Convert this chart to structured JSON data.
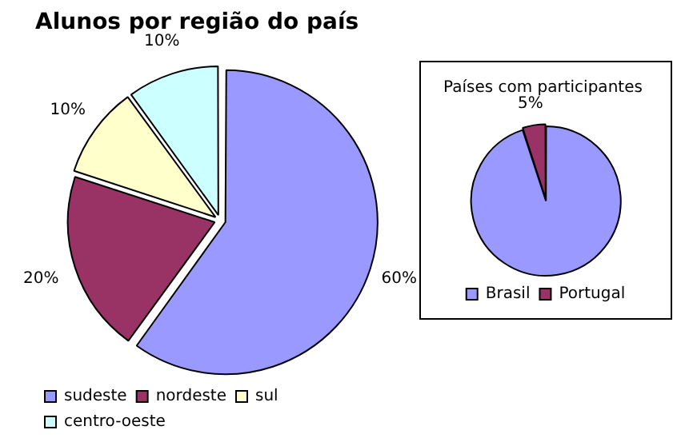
{
  "chart_data": [
    {
      "type": "pie",
      "title": "Alunos por região do país",
      "categories": [
        "sudeste",
        "nordeste",
        "sul",
        "centro-oeste"
      ],
      "values": [
        60,
        20,
        10,
        10
      ],
      "colors": [
        "#9999ff",
        "#993366",
        "#ffffcc",
        "#ccffff"
      ],
      "value_labels": [
        "60%",
        "20%",
        "10%",
        "10%"
      ],
      "legend": "bottom"
    },
    {
      "type": "pie",
      "title": "Países com participantes",
      "categories": [
        "Brasil",
        "Portugal"
      ],
      "values": [
        95,
        5
      ],
      "colors": [
        "#9999ff",
        "#993366"
      ],
      "value_labels": [
        null,
        "5%"
      ],
      "legend": "bottom"
    }
  ]
}
